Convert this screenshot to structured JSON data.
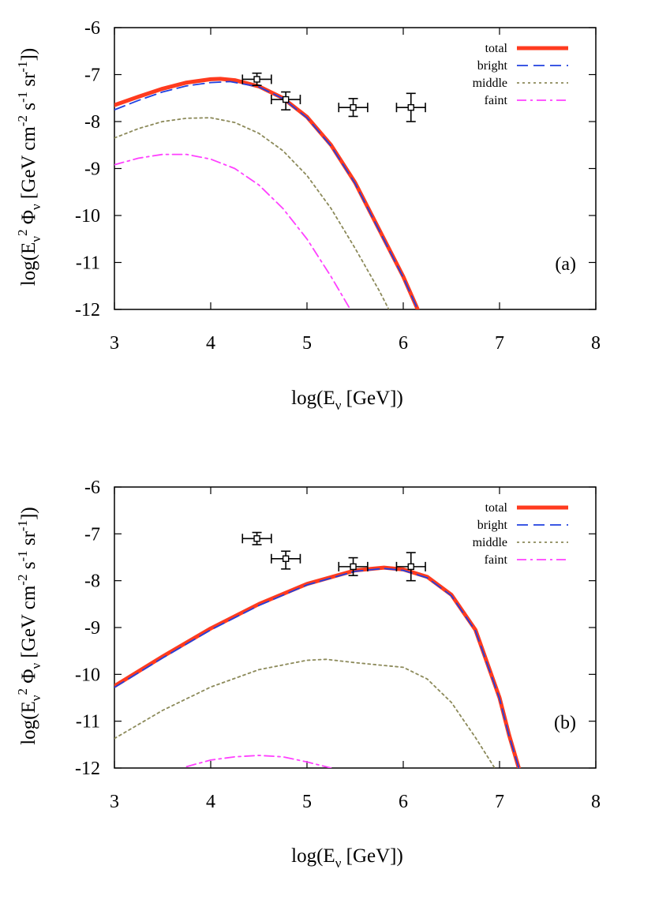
{
  "chart_data": [
    {
      "type": "line",
      "panel_label": "(a)",
      "xlabel": {
        "base": "log(E",
        "sub": "ν",
        "tail": " [GeV])"
      },
      "ylabel": {
        "parts": [
          "log(E",
          "ν",
          "2",
          " Φ",
          "ν",
          " [GeV cm",
          "-2",
          " s",
          "-1",
          " sr",
          "-1",
          "])"
        ]
      },
      "xlim": [
        3,
        8
      ],
      "ylim": [
        -12,
        -6
      ],
      "xticks": [
        "3",
        "4",
        "5",
        "6",
        "7",
        "8"
      ],
      "yticks": [
        "-6",
        "-7",
        "-8",
        "-9",
        "-10",
        "-11",
        "-12"
      ],
      "legend_position": "top-right",
      "series": [
        {
          "name": "total",
          "color": "#ff3b1f",
          "style": "solid-thick",
          "x": [
            3.0,
            3.25,
            3.5,
            3.75,
            4.0,
            4.1,
            4.25,
            4.5,
            4.75,
            5.0,
            5.25,
            5.5,
            5.75,
            6.0,
            6.15
          ],
          "y": [
            -7.65,
            -7.47,
            -7.3,
            -7.17,
            -7.1,
            -7.09,
            -7.12,
            -7.25,
            -7.5,
            -7.9,
            -8.5,
            -9.3,
            -10.3,
            -11.3,
            -12.0
          ]
        },
        {
          "name": "bright",
          "color": "#2040e0",
          "style": "dashed",
          "x": [
            3.0,
            3.25,
            3.5,
            3.75,
            4.0,
            4.2,
            4.5,
            4.75,
            5.0,
            5.25,
            5.5,
            5.75,
            6.0,
            6.15
          ],
          "y": [
            -7.75,
            -7.55,
            -7.37,
            -7.24,
            -7.17,
            -7.15,
            -7.26,
            -7.51,
            -7.92,
            -8.52,
            -9.32,
            -10.32,
            -11.32,
            -12.0
          ]
        },
        {
          "name": "middle",
          "color": "#8c8a5a",
          "style": "dotted",
          "x": [
            3.0,
            3.25,
            3.5,
            3.75,
            4.0,
            4.25,
            4.5,
            4.75,
            5.0,
            5.25,
            5.5,
            5.75,
            5.85
          ],
          "y": [
            -8.35,
            -8.15,
            -8.0,
            -7.93,
            -7.92,
            -8.02,
            -8.25,
            -8.62,
            -9.15,
            -9.85,
            -10.7,
            -11.6,
            -12.0
          ]
        },
        {
          "name": "faint",
          "color": "#ff40ff",
          "style": "dashdot",
          "x": [
            3.0,
            3.25,
            3.5,
            3.75,
            4.0,
            4.25,
            4.5,
            4.75,
            5.0,
            5.25,
            5.45
          ],
          "y": [
            -8.92,
            -8.78,
            -8.7,
            -8.7,
            -8.8,
            -9.0,
            -9.35,
            -9.85,
            -10.5,
            -11.3,
            -12.0
          ]
        }
      ],
      "data_points": [
        {
          "x": 4.48,
          "y": -7.1,
          "xerr": 0.15,
          "yerr_up": 0.13,
          "yerr_down": 0.13
        },
        {
          "x": 4.78,
          "y": -7.53,
          "xerr": 0.15,
          "yerr_up": 0.16,
          "yerr_down": 0.22
        },
        {
          "x": 5.48,
          "y": -7.7,
          "xerr": 0.15,
          "yerr_up": 0.19,
          "yerr_down": 0.19
        },
        {
          "x": 6.08,
          "y": -7.7,
          "xerr": 0.15,
          "yerr_up": 0.3,
          "yerr_down": 0.3
        }
      ]
    },
    {
      "type": "line",
      "panel_label": "(b)",
      "xlabel": {
        "base": "log(E",
        "sub": "ν",
        "tail": " [GeV])"
      },
      "ylabel": {
        "parts": [
          "log(E",
          "ν",
          "2",
          " Φ",
          "ν",
          " [GeV cm",
          "-2",
          " s",
          "-1",
          " sr",
          "-1",
          "])"
        ]
      },
      "xlim": [
        3,
        8
      ],
      "ylim": [
        -12,
        -6
      ],
      "xticks": [
        "3",
        "4",
        "5",
        "6",
        "7",
        "8"
      ],
      "yticks": [
        "-6",
        "-7",
        "-8",
        "-9",
        "-10",
        "-11",
        "-12"
      ],
      "legend_position": "top-right",
      "series": [
        {
          "name": "total",
          "color": "#ff3b1f",
          "style": "solid-thick",
          "x": [
            3.0,
            3.5,
            4.0,
            4.5,
            5.0,
            5.5,
            5.8,
            6.0,
            6.25,
            6.5,
            6.75,
            7.0,
            7.1,
            7.2
          ],
          "y": [
            -10.25,
            -9.62,
            -9.02,
            -8.5,
            -8.07,
            -7.78,
            -7.72,
            -7.76,
            -7.92,
            -8.3,
            -9.05,
            -10.5,
            -11.3,
            -12.0
          ]
        },
        {
          "name": "bright",
          "color": "#2040e0",
          "style": "dashed",
          "x": [
            3.0,
            3.5,
            4.0,
            4.5,
            5.0,
            5.5,
            5.8,
            6.0,
            6.25,
            6.5,
            6.75,
            7.0,
            7.1,
            7.2
          ],
          "y": [
            -10.28,
            -9.65,
            -9.05,
            -8.53,
            -8.09,
            -7.8,
            -7.74,
            -7.78,
            -7.94,
            -8.32,
            -9.07,
            -10.52,
            -11.32,
            -12.0
          ]
        },
        {
          "name": "middle",
          "color": "#8c8a5a",
          "style": "dotted",
          "x": [
            3.0,
            3.5,
            4.0,
            4.5,
            5.0,
            5.2,
            5.5,
            5.75,
            6.0,
            6.25,
            6.5,
            6.75,
            6.95
          ],
          "y": [
            -11.37,
            -10.77,
            -10.27,
            -9.9,
            -9.7,
            -9.68,
            -9.75,
            -9.8,
            -9.85,
            -10.1,
            -10.6,
            -11.35,
            -12.0
          ]
        },
        {
          "name": "faint",
          "color": "#ff40ff",
          "style": "dashdot",
          "x": [
            3.75,
            4.0,
            4.25,
            4.5,
            4.75,
            5.0,
            5.25
          ],
          "y": [
            -11.97,
            -11.83,
            -11.76,
            -11.73,
            -11.76,
            -11.87,
            -12.0
          ]
        }
      ],
      "data_points": [
        {
          "x": 4.48,
          "y": -7.1,
          "xerr": 0.15,
          "yerr_up": 0.13,
          "yerr_down": 0.13
        },
        {
          "x": 4.78,
          "y": -7.53,
          "xerr": 0.15,
          "yerr_up": 0.16,
          "yerr_down": 0.22
        },
        {
          "x": 5.48,
          "y": -7.7,
          "xerr": 0.15,
          "yerr_up": 0.19,
          "yerr_down": 0.19
        },
        {
          "x": 6.08,
          "y": -7.7,
          "xerr": 0.15,
          "yerr_up": 0.3,
          "yerr_down": 0.3
        }
      ]
    }
  ]
}
